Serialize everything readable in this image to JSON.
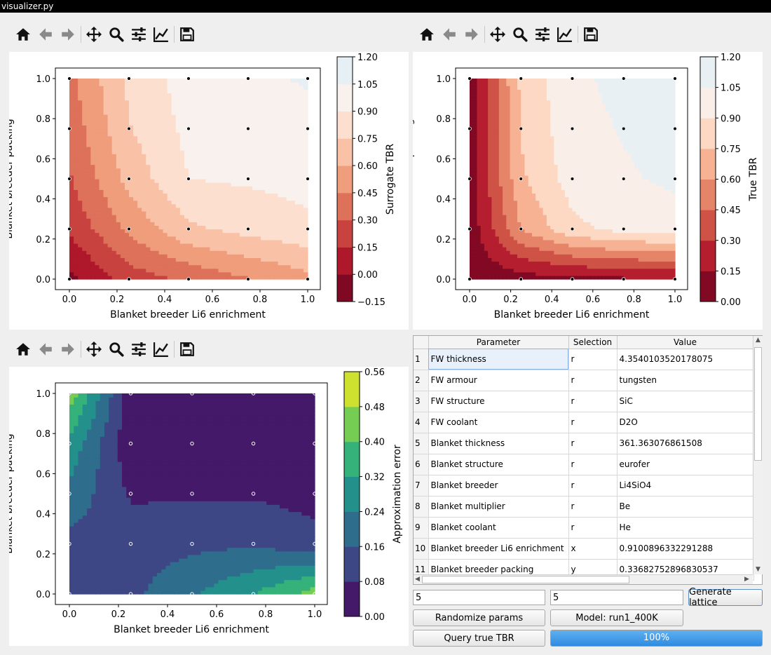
{
  "window": {
    "title": "visualizer.py"
  },
  "toolbar_icons": [
    "home-icon",
    "back-icon",
    "forward-icon",
    "pan-icon",
    "zoom-icon",
    "configure-subplots-icon",
    "edit-axes-icon",
    "save-icon"
  ],
  "chart_data": [
    {
      "type": "heatmap",
      "name": "surrogate-plot",
      "title": "",
      "xlabel": "Blanket breeder Li6 enrichment",
      "ylabel": "Blanket breeder packing",
      "colorbar_label": "Surrogate TBR",
      "colormap": "RdBu",
      "xlim": [
        0,
        1
      ],
      "ylim": [
        0,
        1
      ],
      "x_ticks": [
        "0.0",
        "0.2",
        "0.4",
        "0.6",
        "0.8",
        "1.0"
      ],
      "y_ticks": [
        "0.0",
        "0.2",
        "0.4",
        "0.6",
        "0.8",
        "1.0"
      ],
      "colorbar_ticks": [
        "−0.15",
        "0.00",
        "0.15",
        "0.30",
        "0.45",
        "0.60",
        "0.75",
        "0.90",
        "1.05",
        "1.20"
      ],
      "levels": [
        -0.15,
        0.0,
        0.15,
        0.3,
        0.45,
        0.6,
        0.75,
        0.9,
        1.05,
        1.2
      ],
      "x": [
        0,
        0.25,
        0.5,
        0.75,
        1.0
      ],
      "y": [
        0,
        0.25,
        0.5,
        0.75,
        1.0
      ],
      "z": [
        [
          -0.05,
          0.22,
          0.33,
          0.44,
          0.55
        ],
        [
          0.18,
          0.48,
          0.72,
          0.8,
          0.86
        ],
        [
          0.28,
          0.65,
          0.9,
          0.92,
          0.95
        ],
        [
          0.35,
          0.74,
          0.94,
          0.97,
          0.99
        ],
        [
          0.41,
          0.78,
          0.97,
          1.0,
          1.07
        ]
      ],
      "sample_points": "5x5 lattice"
    },
    {
      "type": "heatmap",
      "name": "true-plot",
      "title": "",
      "xlabel": "Blanket breeder Li6 enrichment",
      "ylabel": "Blanket breeder packing",
      "colorbar_label": "True TBR",
      "colormap": "RdBu",
      "xlim": [
        0,
        1
      ],
      "ylim": [
        0,
        1
      ],
      "x_ticks": [
        "0.0",
        "0.2",
        "0.4",
        "0.6",
        "0.8",
        "1.0"
      ],
      "y_ticks": [
        "0.0",
        "0.2",
        "0.4",
        "0.6",
        "0.8",
        "1.0"
      ],
      "colorbar_ticks": [
        "0.00",
        "0.15",
        "0.30",
        "0.45",
        "0.60",
        "0.75",
        "0.90",
        "1.05",
        "1.20"
      ],
      "levels": [
        0.0,
        0.15,
        0.3,
        0.45,
        0.6,
        0.75,
        0.9,
        1.05,
        1.2
      ],
      "x": [
        0,
        0.25,
        0.5,
        0.75,
        1.0
      ],
      "y": [
        0,
        0.25,
        0.5,
        0.75,
        1.0
      ],
      "z": [
        [
          0.03,
          0.08,
          0.1,
          0.12,
          0.13
        ],
        [
          0.05,
          0.6,
          0.86,
          0.95,
          0.97
        ],
        [
          0.06,
          0.72,
          0.97,
          1.03,
          1.08
        ],
        [
          0.07,
          0.76,
          1.0,
          1.06,
          1.12
        ],
        [
          0.07,
          0.78,
          1.02,
          1.09,
          1.14
        ]
      ],
      "sample_points": "5x5 lattice"
    },
    {
      "type": "heatmap",
      "name": "error-plot",
      "title": "",
      "xlabel": "Blanket breeder Li6 enrichment",
      "ylabel": "Blanket breeder packing",
      "colorbar_label": "Approximation error",
      "colormap": "viridis",
      "xlim": [
        0,
        1
      ],
      "ylim": [
        0,
        1
      ],
      "x_ticks": [
        "0.0",
        "0.2",
        "0.4",
        "0.6",
        "0.8",
        "1.0"
      ],
      "y_ticks": [
        "0.0",
        "0.2",
        "0.4",
        "0.6",
        "0.8",
        "1.0"
      ],
      "colorbar_ticks": [
        "0.00",
        "0.08",
        "0.16",
        "0.24",
        "0.32",
        "0.40",
        "0.48",
        "0.56"
      ],
      "levels": [
        0.0,
        0.08,
        0.16,
        0.24,
        0.32,
        0.4,
        0.48,
        0.56
      ],
      "x": [
        0,
        0.25,
        0.5,
        0.75,
        1.0
      ],
      "y": [
        0,
        0.25,
        0.5,
        0.75,
        1.0
      ],
      "z": [
        [
          0.08,
          0.14,
          0.23,
          0.32,
          0.44
        ],
        [
          0.13,
          0.12,
          0.14,
          0.15,
          0.11
        ],
        [
          0.22,
          0.07,
          0.07,
          0.07,
          0.05
        ],
        [
          0.3,
          0.02,
          0.02,
          0.02,
          0.02
        ],
        [
          0.45,
          0.03,
          0.03,
          0.02,
          0.03
        ]
      ],
      "sample_points": "5x5 lattice"
    }
  ],
  "table": {
    "headers": [
      "Parameter",
      "Selection",
      "Value"
    ],
    "rows": [
      {
        "index": "1",
        "parameter": "FW thickness",
        "selection": "r",
        "value": "4.3540103520178075"
      },
      {
        "index": "2",
        "parameter": "FW armour",
        "selection": "r",
        "value": "tungsten"
      },
      {
        "index": "3",
        "parameter": "FW structure",
        "selection": "r",
        "value": "SiC"
      },
      {
        "index": "4",
        "parameter": "FW coolant",
        "selection": "r",
        "value": "D2O"
      },
      {
        "index": "5",
        "parameter": "Blanket thickness",
        "selection": "r",
        "value": "361.363076861508"
      },
      {
        "index": "6",
        "parameter": "Blanket structure",
        "selection": "r",
        "value": "eurofer"
      },
      {
        "index": "7",
        "parameter": "Blanket breeder",
        "selection": "r",
        "value": "Li4SiO4"
      },
      {
        "index": "8",
        "parameter": "Blanket multiplier",
        "selection": "r",
        "value": "Be"
      },
      {
        "index": "9",
        "parameter": "Blanket coolant",
        "selection": "r",
        "value": "He"
      },
      {
        "index": "10",
        "parameter": "Blanket breeder Li6 enrichment",
        "selection": "x",
        "value": "0.9100896332291288"
      },
      {
        "index": "11",
        "parameter": "Blanket breeder packing",
        "selection": "y",
        "value": "0.33682752896830537"
      }
    ]
  },
  "controls": {
    "lattice_x": "5",
    "lattice_y": "5",
    "generate_label": "Generate lattice",
    "randomize_label": "Randomize params",
    "model_label": "Model: run1_400K",
    "query_label": "Query true TBR",
    "progress_value": 100,
    "progress_text": "100%"
  }
}
